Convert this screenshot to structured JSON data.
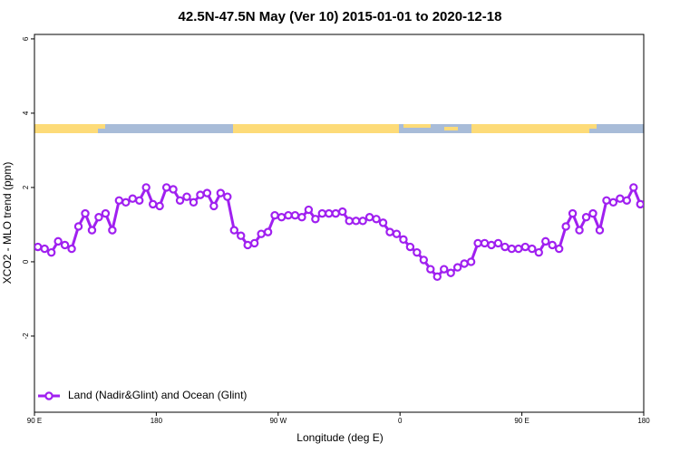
{
  "chart_data": {
    "type": "line",
    "title": "42.5N-47.5N May (Ver 10)   2015-01-01 to 2020-12-18",
    "x_label": "Longitude (deg E)",
    "y_label": "XCO2 - MLO trend (ppm)",
    "xlim": [
      90,
      540
    ],
    "ylim": [
      -4.05,
      6.12
    ],
    "xticks": [
      {
        "value": 90,
        "label": "90 E"
      },
      180,
      {
        "value": 270,
        "label": "90 W"
      },
      {
        "value": 360,
        "label": "0"
      },
      {
        "value": 450,
        "label": "90 E"
      },
      {
        "value": 540,
        "label": "180"
      }
    ],
    "yticks": [
      6,
      4,
      2,
      0,
      -2
    ],
    "legend": "bottom-left",
    "x": [
      92.5,
      97.5,
      102.5,
      107.5,
      112.5,
      117.5,
      122.5,
      127.5,
      132.5,
      137.5,
      142.5,
      147.5,
      152.5,
      157.5,
      162.5,
      167.5,
      172.5,
      177.5,
      182.5,
      187.5,
      192.5,
      197.5,
      202.5,
      207.5,
      212.5,
      217.5,
      222.5,
      227.5,
      232.5,
      237.5,
      242.5,
      247.5,
      252.5,
      257.5,
      262.5,
      267.5,
      272.5,
      277.5,
      282.5,
      287.5,
      292.5,
      297.5,
      302.5,
      307.5,
      312.5,
      317.5,
      322.5,
      327.5,
      332.5,
      337.5,
      342.5,
      347.5,
      352.5,
      357.5,
      362.5,
      367.5,
      372.5,
      377.5,
      382.5,
      387.5,
      392.5,
      397.5,
      402.5,
      407.5,
      412.5,
      417.5,
      422.5,
      427.5,
      432.5,
      437.5,
      442.5,
      447.5,
      452.5,
      457.5,
      462.5,
      467.5,
      472.5,
      477.5,
      482.5,
      487.5,
      492.5,
      497.5,
      502.5,
      507.5,
      512.5,
      517.5,
      522.5,
      527.5,
      532.5,
      537.5
    ],
    "series": [
      {
        "name": "Land (Nadir&Glint) and Ocean (Glint)",
        "color": "#a020f0",
        "values": [
          0.4,
          0.35,
          0.25,
          0.55,
          0.45,
          0.35,
          0.95,
          1.3,
          0.85,
          1.2,
          1.3,
          0.85,
          1.65,
          1.6,
          1.7,
          1.65,
          2.0,
          1.55,
          1.5,
          2.0,
          1.95,
          1.65,
          1.75,
          1.6,
          1.8,
          1.85,
          1.5,
          1.85,
          1.75,
          0.85,
          0.7,
          0.45,
          0.5,
          0.75,
          0.8,
          1.25,
          1.2,
          1.25,
          1.25,
          1.2,
          1.4,
          1.15,
          1.3,
          1.3,
          1.3,
          1.35,
          1.1,
          1.1,
          1.1,
          1.2,
          1.15,
          1.05,
          0.8,
          0.75,
          0.6,
          0.4,
          0.25,
          0.05,
          -0.2,
          -0.4,
          -0.2,
          -0.3,
          -0.15,
          -0.05,
          0.0,
          0.5,
          0.5,
          0.45,
          0.5,
          0.4,
          0.35,
          0.35,
          0.4,
          0.35,
          0.25,
          0.55,
          0.45,
          0.35,
          0.95,
          1.3,
          0.85,
          1.2,
          1.3,
          0.85,
          1.65,
          1.6,
          1.7,
          1.65,
          2.0,
          1.55
        ]
      }
    ]
  }
}
